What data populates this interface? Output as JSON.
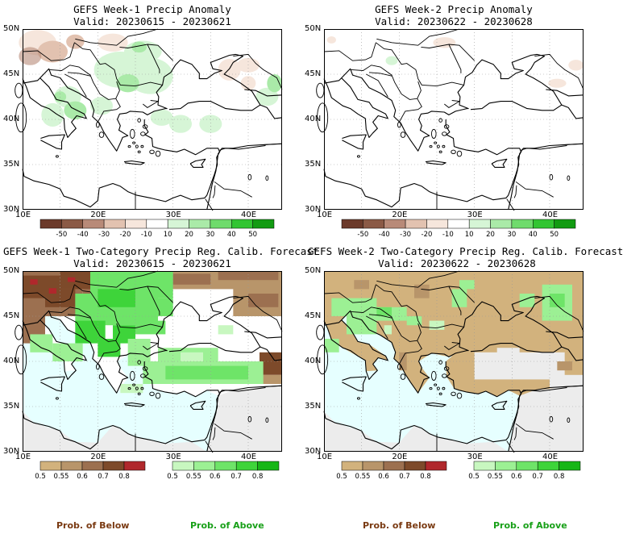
{
  "panels": [
    {
      "title": "GEFS Week-1 Precip Anomaly",
      "valid": "Valid: 20230615 - 20230621"
    },
    {
      "title": "GEFS Week-2 Precip Anomaly",
      "valid": "Valid: 20230622 - 20230628"
    },
    {
      "title": "GEFS Week-1 Two-Category Precip Reg. Calib. Forecast",
      "valid": "Valid: 20230615 - 20230621"
    },
    {
      "title": "GEFS Week-2 Two-Category Precip Reg. Calib. Forecast",
      "valid": "Valid: 20230622 - 20230628"
    }
  ],
  "lat_labels": [
    "50N",
    "45N",
    "40N",
    "35N",
    "30N"
  ],
  "lon_labels": [
    "10E",
    "20E",
    "30E",
    "40E"
  ],
  "anomaly_colorbar": {
    "labels": [
      "-50",
      "-40",
      "-30",
      "-20",
      "-10",
      "10",
      "20",
      "30",
      "40",
      "50"
    ],
    "colors": [
      "#6b3a2a",
      "#8b5a46",
      "#b88a78",
      "#e2c2b0",
      "#f6e6dc",
      "#ffffff",
      "#d6f5d6",
      "#aaeaa8",
      "#6fdb6c",
      "#32c532",
      "#129b12"
    ]
  },
  "prob_colorbar_below": {
    "labels": [
      "0.5",
      "0.55",
      "0.6",
      "0.7",
      "0.8"
    ],
    "colors": [
      "#d2b27d",
      "#b8956a",
      "#9c7050",
      "#7d4a2a",
      "#b0282c"
    ]
  },
  "prob_colorbar_above": {
    "labels": [
      "0.5",
      "0.55",
      "0.6",
      "0.7",
      "0.8"
    ],
    "colors": [
      "#c8f7c0",
      "#9cf094",
      "#6ee468",
      "#3ed43a",
      "#16b616"
    ]
  },
  "footer": {
    "below": "Prob. of Below",
    "above": "Prob. of Above",
    "below_color": "#7a3a12",
    "above_color": "#18a018"
  }
}
